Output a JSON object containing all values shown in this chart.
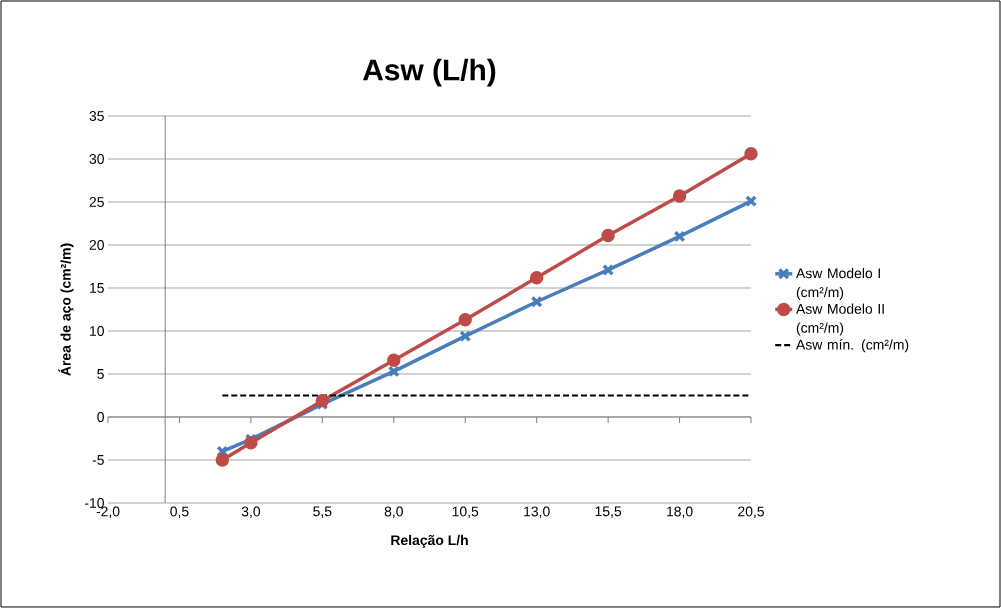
{
  "chart_data": {
    "type": "line",
    "title": "Asw (L/h)",
    "xlabel": "Relação L/h",
    "ylabel": "Área de aço (cm²/m)",
    "x": [
      2.0,
      3.0,
      5.5,
      8.0,
      10.5,
      13.0,
      15.5,
      18.0,
      20.5
    ],
    "series": [
      {
        "name": "Asw Modelo I (cm²/m)",
        "color": "#4a7ebb",
        "marker": "cross",
        "line_style": "solid",
        "values": [
          -4.0,
          -2.6,
          1.5,
          5.3,
          9.4,
          13.4,
          17.1,
          21.0,
          25.1
        ]
      },
      {
        "name": "Asw Modelo II (cm²/m)",
        "color": "#be4b48",
        "marker": "circle",
        "line_style": "solid",
        "values": [
          -5.0,
          -3.0,
          1.9,
          6.6,
          11.3,
          16.2,
          21.1,
          25.7,
          30.6
        ]
      },
      {
        "name": "Asw mín. (cm²/m)",
        "color": "#000000",
        "marker": "none",
        "line_style": "dashed",
        "values": [
          2.5,
          2.5,
          2.5,
          2.5,
          2.5,
          2.5,
          2.5,
          2.5,
          2.5
        ]
      }
    ],
    "xlim": [
      -2.0,
      20.5
    ],
    "xticks": [
      {
        "value": -2.0,
        "label": "-2,0"
      },
      {
        "value": 0.5,
        "label": "0,5"
      },
      {
        "value": 3.0,
        "label": "3,0"
      },
      {
        "value": 5.5,
        "label": "5,5"
      },
      {
        "value": 8.0,
        "label": "8,0"
      },
      {
        "value": 10.5,
        "label": "10,5"
      },
      {
        "value": 13.0,
        "label": "13,0"
      },
      {
        "value": 15.5,
        "label": "15,5"
      },
      {
        "value": 18.0,
        "label": "18,0"
      },
      {
        "value": 20.5,
        "label": "20,5"
      }
    ],
    "ylim": [
      -10,
      35
    ],
    "yticks": [
      -10,
      -5,
      0,
      5,
      10,
      15,
      20,
      25,
      30,
      35
    ],
    "grid": "y",
    "legend": "right"
  }
}
